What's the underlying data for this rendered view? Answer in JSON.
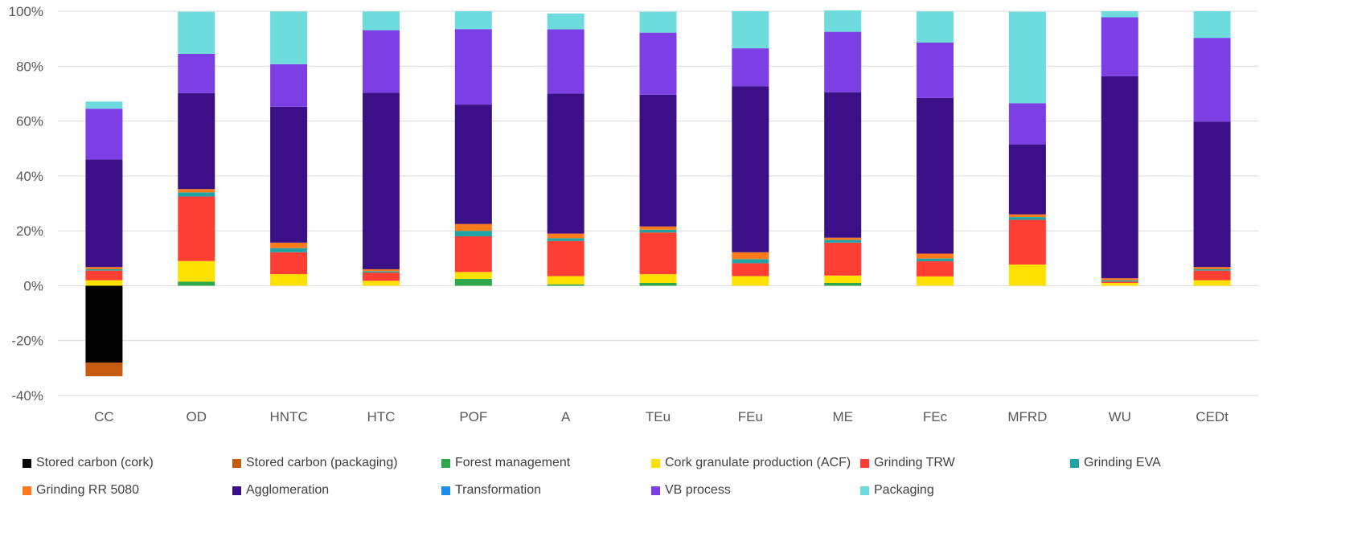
{
  "chart_data": {
    "type": "bar",
    "stacked": true,
    "categories": [
      "CC",
      "OD",
      "HNTC",
      "HTC",
      "POF",
      "A",
      "TEu",
      "FEu",
      "ME",
      "FEc",
      "MFRD",
      "WU",
      "CEDt"
    ],
    "ylim": [
      -40,
      100
    ],
    "yticks": [
      "100%",
      "80%",
      "60%",
      "40%",
      "20%",
      "0%",
      "-20%",
      "-40%"
    ],
    "ytick_values": [
      100,
      80,
      60,
      40,
      20,
      0,
      -20,
      -40
    ],
    "grid": true,
    "legend_position": "bottom",
    "series": [
      {
        "name": "Stored carbon (cork)",
        "color": "#000000",
        "values": [
          -28,
          0,
          0,
          0,
          0,
          0,
          0,
          0,
          0,
          0,
          0,
          0,
          0
        ]
      },
      {
        "name": "Stored carbon (packaging)",
        "color": "#c55a11",
        "values": [
          -5,
          0,
          0,
          0,
          0,
          0,
          0,
          0,
          0,
          0,
          0,
          0,
          0
        ]
      },
      {
        "name": "Forest management",
        "color": "#2ea84a",
        "values": [
          0,
          1.5,
          0,
          0,
          2.5,
          0.5,
          1,
          0,
          1,
          0,
          0,
          0,
          0
        ]
      },
      {
        "name": "Cork granulate production (ACF)",
        "color": "#ffe100",
        "values": [
          2,
          7.5,
          4.2,
          1.8,
          2.5,
          3,
          3.2,
          3.5,
          2.7,
          3.4,
          7.7,
          1,
          2
        ]
      },
      {
        "name": "Grinding TRW",
        "color": "#ff3f33",
        "values": [
          3.5,
          23.5,
          8,
          3,
          13,
          12.8,
          15.2,
          4.7,
          12,
          5.5,
          16.3,
          0.5,
          3.5
        ]
      },
      {
        "name": "Grinding EVA",
        "color": "#20a3a3",
        "values": [
          0.5,
          1.5,
          1.5,
          0.5,
          2,
          1,
          1,
          1.5,
          1,
          1,
          1,
          0.5,
          0.5
        ]
      },
      {
        "name": "Grinding RR 5080",
        "color": "#ff7a1a",
        "values": [
          0.8,
          1.2,
          2,
          0.7,
          2.5,
          1.7,
          1.2,
          2.5,
          0.8,
          1.8,
          1,
          0.7,
          0.8
        ]
      },
      {
        "name": "Agglomeration",
        "color": "#3b0f85",
        "values": [
          39.2,
          35,
          49.5,
          64.3,
          43.5,
          51,
          48,
          60.5,
          53,
          56.7,
          25.5,
          73.6,
          53
        ]
      },
      {
        "name": "Transformation",
        "color": "#1e8cf0",
        "values": [
          0,
          0,
          0,
          0,
          0,
          0,
          0,
          0,
          0,
          0,
          0,
          0,
          0
        ]
      },
      {
        "name": "VB process",
        "color": "#7c3fe4",
        "values": [
          18.5,
          14.3,
          15.5,
          22.8,
          27.5,
          23.4,
          22.6,
          13.8,
          22,
          20.2,
          15,
          21.5,
          30.5
        ]
      },
      {
        "name": "Packaging",
        "color": "#6edcdc",
        "values": [
          2.6,
          15.3,
          19.2,
          6.8,
          6.5,
          5.8,
          7.6,
          13.5,
          7.8,
          11.3,
          33.3,
          2.2,
          9.7
        ]
      }
    ]
  }
}
